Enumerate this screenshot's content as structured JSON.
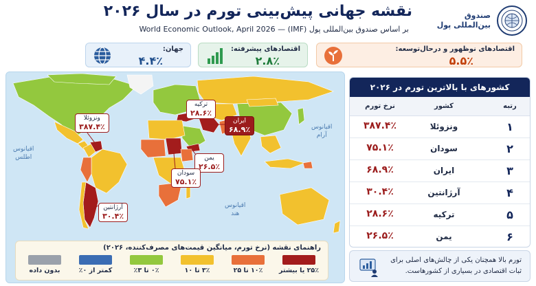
{
  "header": {
    "title": "نقشه جهانی پیش‌بینی تورم در سال ۲۰۲۶",
    "subtitle": "بر اساس صندوق بین‌المللی پول (IMF) — World Economic Outlook, April 2026",
    "brand_line1": "صندوق",
    "brand_line2": "بین‌المللی پول",
    "seal_icon": "imf-seal-icon"
  },
  "kpis": {
    "emerging": {
      "label": "اقتصادهای نوظهور و درحال‌توسعه:",
      "value": "۵.۵٪",
      "color": "#c2410c",
      "icon": "sprout-icon"
    },
    "advanced": {
      "label": "اقتصادهای پیشرفته:",
      "value": "۲.۸٪",
      "color": "#1e7b3a",
      "icon": "bar-growth-icon"
    },
    "world": {
      "label": "جهان:",
      "value": "۴.۴٪",
      "color": "#1f4e8c",
      "icon": "globe-icon"
    }
  },
  "map": {
    "oceans": {
      "atlantic_1": "اقیانوس",
      "atlantic_2": "اطلس",
      "pacific_1": "اقیانوس",
      "pacific_2": "آرام",
      "indian_1": "اقیانوس",
      "indian_2": "هند"
    },
    "callouts": {
      "turkey": {
        "name": "ترکیه",
        "value": "۲۸.۶٪"
      },
      "iran": {
        "name": "ایران",
        "value": "۶۸.۹٪"
      },
      "venezuela": {
        "name": "ونزوئلا",
        "value": "۳۸۷.۴٪"
      },
      "yemen": {
        "name": "یمن",
        "value": "۲۶.۵٪"
      },
      "sudan": {
        "name": "سودان",
        "value": "۷۵.۱٪"
      },
      "argentina": {
        "name": "آرژانتین",
        "value": "۳۰.۴٪"
      }
    }
  },
  "legend": {
    "title": "راهنمای نقشه (نرخ تورم، میانگین قیمت‌های مصرف‌کننده، ۲۰۲۶)",
    "items": [
      {
        "label": "۲۵٪ یا بیشتر",
        "color": "#a31c1c"
      },
      {
        "label": "۱۰٪ تا ۲۵",
        "color": "#e8703a"
      },
      {
        "label": "۳٪ تا ۱۰",
        "color": "#f2c12e"
      },
      {
        "label": "۰٪ تا ۳٪",
        "color": "#93c83e"
      },
      {
        "label": "کمتر از ۰٪",
        "color": "#3b6db3"
      },
      {
        "label": "بدون داده",
        "color": "#9aa1ab"
      }
    ]
  },
  "table": {
    "title": "کشورهای با بالاترین تورم در ۲۰۲۶",
    "col_rank": "رتبه",
    "col_country": "کشور",
    "col_rate": "نرخ تورم"
  },
  "chart_data": {
    "type": "table",
    "title": "کشورهای با بالاترین تورم در ۲۰۲۶",
    "columns": [
      "رتبه",
      "کشور",
      "نرخ تورم"
    ],
    "rows": [
      {
        "rank": "۱",
        "country": "ونزوئلا",
        "rate": "۳۸۷.۴٪",
        "value": 387.4
      },
      {
        "rank": "۲",
        "country": "سودان",
        "rate": "۷۵.۱٪",
        "value": 75.1
      },
      {
        "rank": "۳",
        "country": "ایران",
        "rate": "۶۸.۹٪",
        "value": 68.9
      },
      {
        "rank": "۴",
        "country": "آرژانتین",
        "rate": "۳۰.۴٪",
        "value": 30.4
      },
      {
        "rank": "۵",
        "country": "ترکیه",
        "rate": "۲۸.۶٪",
        "value": 28.6
      },
      {
        "rank": "۶",
        "country": "یمن",
        "rate": "۲۶.۵٪",
        "value": 26.5
      }
    ],
    "kpis": [
      {
        "label": "اقتصادهای نوظهور و درحال‌توسعه",
        "value": 5.5
      },
      {
        "label": "اقتصادهای پیشرفته",
        "value": 2.8
      },
      {
        "label": "جهان",
        "value": 4.4
      }
    ]
  },
  "note": {
    "text": "تورم بالا همچنان یکی از چالش‌های اصلی برای ثبات اقتصادی در بسیاری از کشورهاست.",
    "icon": "chart-person-icon"
  }
}
